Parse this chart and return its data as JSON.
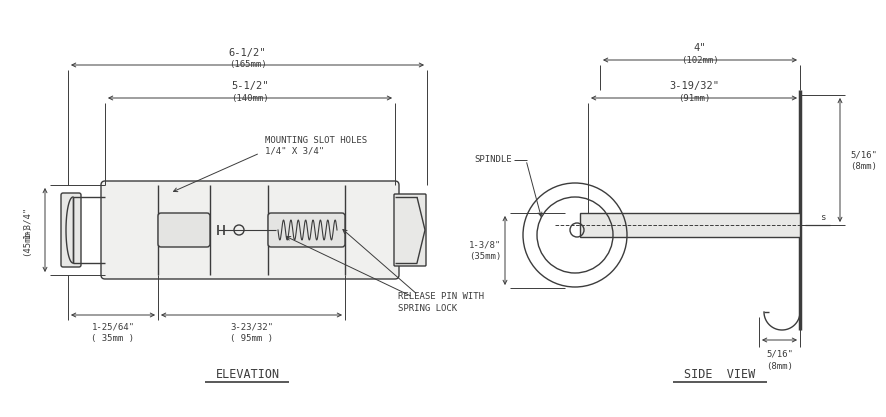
{
  "bg_color": "#ffffff",
  "line_color": "#3c3c3c",
  "text_color": "#3c3c3c",
  "font_family": "DejaVu Sans",
  "labels": {
    "dim_6half": "6-1/2\"\n(165mm)",
    "dim_5half": "5-1/2\"\n(140mm)",
    "dim_height": "1-3/4\"\n(45mm)",
    "dim_125_64": "1-25/64\"\n( 35mm )",
    "dim_3_23_32": "3-23/32\"\n( 95mm )",
    "mount_holes": "MOUNTING SLOT HOLES\n1/4\" X 3/4\"",
    "release_pin": "RELEASE PIN WITH\nSPRING LOCK",
    "elevation": "ELEVATION",
    "side_view": "SIDE  VIEW",
    "spindle": "SPINDLE",
    "dim_4": "4\"\n(102mm)",
    "dim_3_19_32": "3-19/32\"\n(91mm)",
    "dim_1_3_8": "1-3/8\"\n(35mm)",
    "dim_5_16_r": "5/16\"\n(8mm)",
    "dim_5_16_b": "5/16\"\n(8mm)"
  }
}
